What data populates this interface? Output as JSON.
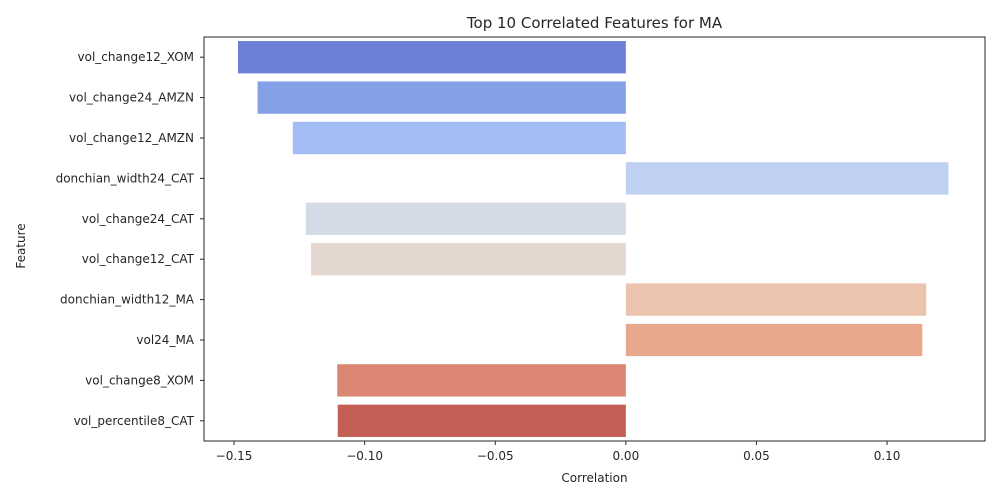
{
  "chart_data": {
    "type": "bar",
    "orientation": "horizontal",
    "title": "Top 10 Correlated Features for MA",
    "xlabel": "Correlation",
    "ylabel": "Feature",
    "xlim": [
      -0.1615,
      0.1375
    ],
    "x_ticks": [
      -0.15,
      -0.1,
      -0.05,
      0.0,
      0.05,
      0.1
    ],
    "x_tick_labels": [
      "−0.15",
      "−0.10",
      "−0.05",
      "0.00",
      "0.05",
      "0.10"
    ],
    "grid": false,
    "categories": [
      "vol_change12_XOM",
      "vol_change24_AMZN",
      "vol_change12_AMZN",
      "donchian_width24_CAT",
      "vol_change24_CAT",
      "vol_change12_CAT",
      "donchian_width12_MA",
      "vol24_MA",
      "vol_change8_XOM",
      "vol_percentile8_CAT"
    ],
    "values": [
      -0.1485,
      -0.141,
      -0.1275,
      0.1235,
      -0.1225,
      -0.1205,
      0.115,
      0.1135,
      -0.1105,
      -0.1103
    ],
    "colors": [
      "#6a80d4",
      "#84a1e7",
      "#a2bcf4",
      "#bfd0f3",
      "#d4dae6",
      "#e4d7cf",
      "#ecc4ae",
      "#e8a88c",
      "#da8672",
      "#c35f55"
    ]
  }
}
